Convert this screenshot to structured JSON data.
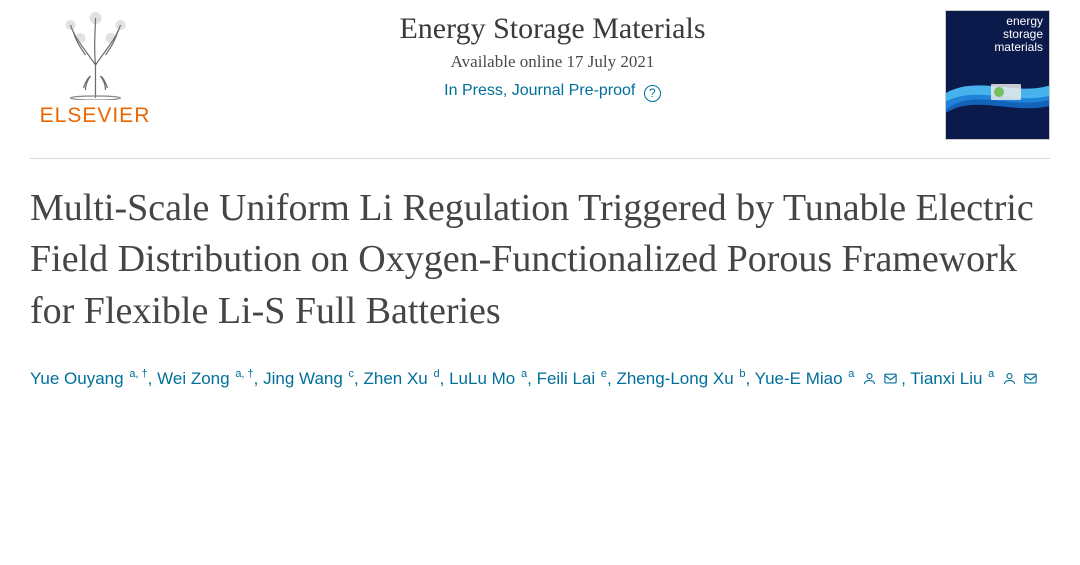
{
  "publisher": {
    "name": "ELSEVIER",
    "logo_color": "#eb6500"
  },
  "journal": {
    "name": "Energy Storage Materials",
    "available": "Available online 17 July 2021",
    "status": "In Press, Journal Pre-proof",
    "status_color": "#006f9b",
    "cover_bg": "#0a1a4a",
    "cover_text_line1": "energy",
    "cover_text_line2": "storage",
    "cover_text_line3": "materials"
  },
  "article": {
    "title": "Multi-Scale Uniform Li Regulation Triggered by Tunable Electric Field Distribution on Oxygen-Functionalized Porous Framework for Flexible Li-S Full Batteries",
    "title_color": "#454545",
    "title_fontsize": 38
  },
  "authors": [
    {
      "name": "Yue Ouyang",
      "aff": "a, †"
    },
    {
      "name": "Wei Zong",
      "aff": "a, †"
    },
    {
      "name": "Jing Wang",
      "aff": "c"
    },
    {
      "name": "Zhen Xu",
      "aff": "d"
    },
    {
      "name": "LuLu Mo",
      "aff": "a"
    },
    {
      "name": "Feili Lai",
      "aff": "e"
    },
    {
      "name": "Zheng-Long Xu",
      "aff": "b"
    },
    {
      "name": "Yue-E Miao",
      "aff": "a",
      "corresponding": true
    },
    {
      "name": "Tianxi Liu",
      "aff": "a",
      "corresponding": true
    }
  ],
  "author_link_color": "#006f9b"
}
